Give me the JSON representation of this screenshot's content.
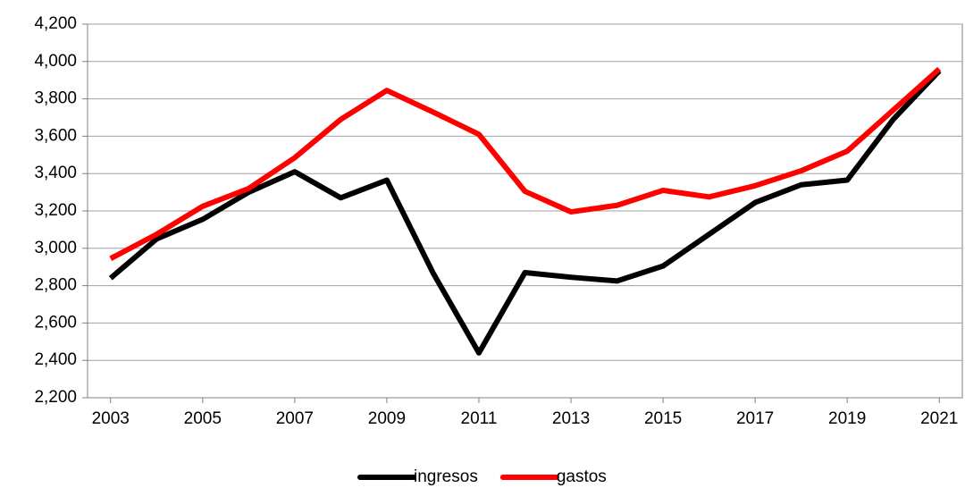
{
  "chart_data": {
    "type": "line",
    "x": [
      2003,
      2004,
      2005,
      2006,
      2007,
      2008,
      2009,
      2010,
      2011,
      2012,
      2013,
      2014,
      2015,
      2016,
      2017,
      2018,
      2019,
      2020,
      2021
    ],
    "xlim": [
      2002.5,
      2021.5
    ],
    "xticks": [
      2003,
      2005,
      2007,
      2009,
      2011,
      2013,
      2015,
      2017,
      2019,
      2021
    ],
    "ylim": [
      2200,
      4200
    ],
    "yticks": [
      {
        "value": 2200,
        "label": "2,200"
      },
      {
        "value": 2400,
        "label": "2,400"
      },
      {
        "value": 2600,
        "label": "2,600"
      },
      {
        "value": 2800,
        "label": "2,800"
      },
      {
        "value": 3000,
        "label": "3,000"
      },
      {
        "value": 3200,
        "label": "3,200"
      },
      {
        "value": 3400,
        "label": "3,400"
      },
      {
        "value": 3600,
        "label": "3,600"
      },
      {
        "value": 3800,
        "label": "3,800"
      },
      {
        "value": 4000,
        "label": "4,000"
      },
      {
        "value": 4200,
        "label": "4,200"
      }
    ],
    "grid": true,
    "legend": "bottom",
    "series": [
      {
        "name": "ingresos",
        "color": "#000000",
        "values": [
          2840,
          3050,
          3155,
          3300,
          3410,
          3270,
          3365,
          2870,
          2440,
          2870,
          2845,
          2825,
          2905,
          3075,
          3245,
          3340,
          3365,
          3690,
          3950
        ]
      },
      {
        "name": "gastos",
        "color": "#ff0000",
        "values": [
          2945,
          3075,
          3225,
          3320,
          3485,
          3690,
          3845,
          3730,
          3610,
          3305,
          3195,
          3230,
          3310,
          3275,
          3335,
          3415,
          3520,
          3740,
          3960
        ]
      }
    ]
  }
}
